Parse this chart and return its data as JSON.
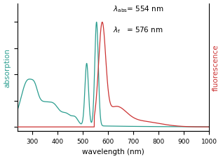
{
  "xlabel": "wavelength (nm)",
  "ylabel_left": "absorption",
  "ylabel_right": "fluorescence",
  "abs_color": "#2a9d8f",
  "fl_color": "#cc3333",
  "xmin": 240,
  "xmax": 1000,
  "xticks": [
    300,
    400,
    500,
    600,
    700,
    800,
    900,
    1000
  ]
}
